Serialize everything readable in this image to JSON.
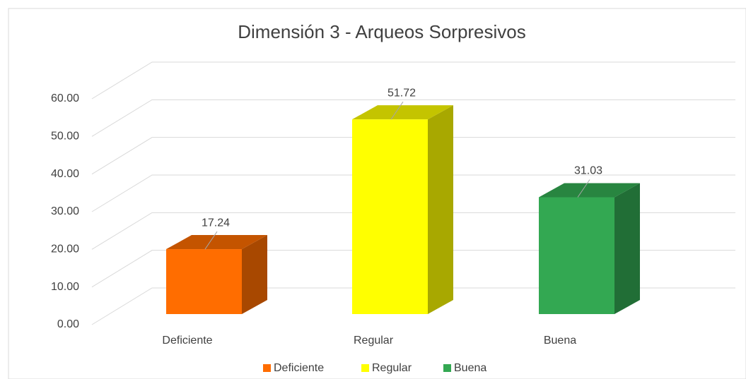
{
  "chart_data": {
    "type": "bar3d",
    "title": "Dimensión 3 - Arqueos Sorpresivos",
    "categories": [
      "Deficiente",
      "Regular",
      "Buena"
    ],
    "values": [
      17.24,
      51.72,
      31.03
    ],
    "colors": [
      "#ff6d00",
      "#ffff00",
      "#33a852"
    ],
    "side_colors": [
      "#a84800",
      "#a8a800",
      "#216e36"
    ],
    "top_colors": [
      "#c45400",
      "#c4c400",
      "#288540"
    ],
    "ylim": [
      0,
      60
    ],
    "yticks": [
      {
        "value": 0,
        "label": "0.00"
      },
      {
        "value": 10,
        "label": "10.00"
      },
      {
        "value": 20,
        "label": "20.00"
      },
      {
        "value": 30,
        "label": "30.00"
      },
      {
        "value": 40,
        "label": "40.00"
      },
      {
        "value": 50,
        "label": "50.00"
      },
      {
        "value": 60,
        "label": "60.00"
      }
    ],
    "grid": true,
    "legend": "bottom"
  }
}
